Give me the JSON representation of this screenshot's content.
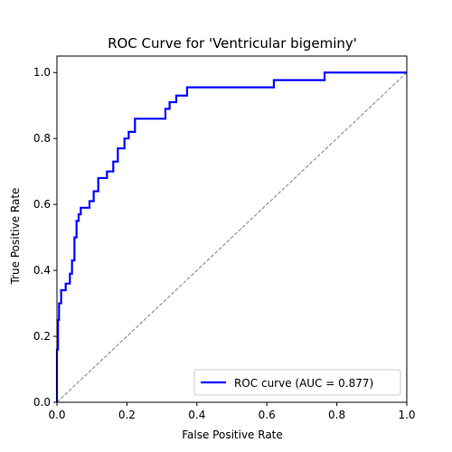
{
  "chart_data": {
    "type": "line",
    "title": "ROC Curve for 'Ventricular bigeminy'",
    "xlabel": "False Positive Rate",
    "ylabel": "True Positive Rate",
    "xlim": [
      0.0,
      1.0
    ],
    "ylim": [
      0.0,
      1.05
    ],
    "x_ticks": [
      0.0,
      0.2,
      0.4,
      0.6,
      0.8,
      1.0
    ],
    "y_ticks": [
      0.0,
      0.2,
      0.4,
      0.6,
      0.8,
      1.0
    ],
    "x_tick_labels": [
      "0.0",
      "0.2",
      "0.4",
      "0.6",
      "0.8",
      "1.0"
    ],
    "y_tick_labels": [
      "0.0",
      "0.2",
      "0.4",
      "0.6",
      "0.8",
      "1.0"
    ],
    "grid": false,
    "legend_position": "lower right",
    "series": [
      {
        "name": "ROC curve (AUC = 0.877)",
        "color": "#0000ff",
        "style": "solid",
        "x": [
          0.0,
          0.0,
          0.003,
          0.003,
          0.006,
          0.006,
          0.012,
          0.012,
          0.025,
          0.025,
          0.037,
          0.037,
          0.043,
          0.043,
          0.05,
          0.05,
          0.056,
          0.056,
          0.062,
          0.062,
          0.068,
          0.068,
          0.093,
          0.093,
          0.105,
          0.105,
          0.118,
          0.118,
          0.143,
          0.143,
          0.161,
          0.161,
          0.174,
          0.174,
          0.193,
          0.193,
          0.205,
          0.205,
          0.223,
          0.223,
          0.248,
          0.248,
          0.31,
          0.31,
          0.322,
          0.322,
          0.341,
          0.341,
          0.372,
          0.372,
          0.62,
          0.62,
          0.765,
          0.765,
          1.0
        ],
        "y": [
          0.0,
          0.16,
          0.16,
          0.25,
          0.25,
          0.3,
          0.3,
          0.34,
          0.34,
          0.36,
          0.36,
          0.39,
          0.39,
          0.43,
          0.43,
          0.5,
          0.5,
          0.55,
          0.55,
          0.57,
          0.57,
          0.59,
          0.59,
          0.61,
          0.61,
          0.64,
          0.64,
          0.68,
          0.68,
          0.7,
          0.7,
          0.73,
          0.73,
          0.77,
          0.77,
          0.8,
          0.8,
          0.82,
          0.82,
          0.86,
          0.86,
          0.86,
          0.86,
          0.89,
          0.89,
          0.91,
          0.91,
          0.93,
          0.93,
          0.955,
          0.955,
          0.977,
          0.977,
          1.0,
          1.0
        ]
      },
      {
        "name": "",
        "color": "#808080",
        "style": "dashed",
        "x": [
          0.0,
          1.0
        ],
        "y": [
          0.0,
          1.0
        ]
      }
    ]
  }
}
